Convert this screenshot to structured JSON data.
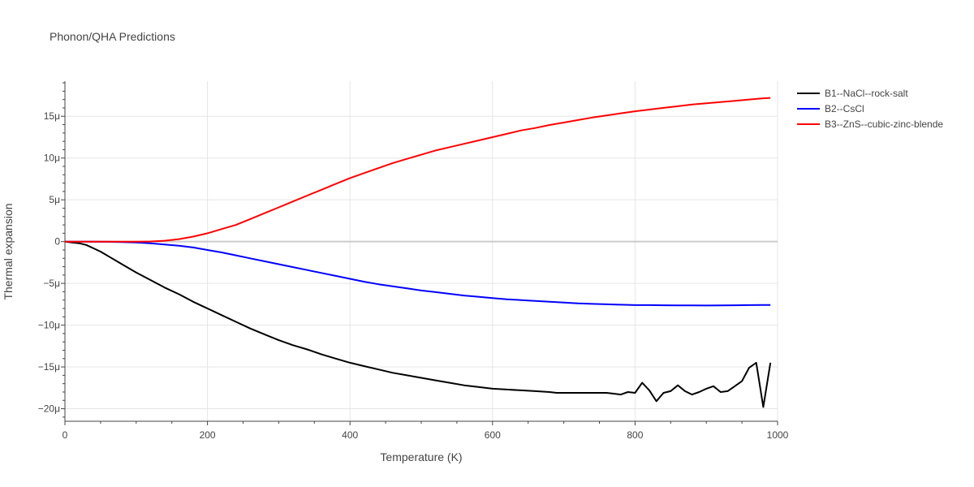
{
  "title": "Phonon/QHA Predictions",
  "chart_data": {
    "type": "line",
    "title": "Phonon/QHA Predictions",
    "xlabel": "Temperature (K)",
    "ylabel": "Thermal expansion",
    "xlim": [
      0,
      1000
    ],
    "ylim": [
      -21.5,
      19.2
    ],
    "x_ticks": [
      {
        "value": 0,
        "label": "0"
      },
      {
        "value": 200,
        "label": "200"
      },
      {
        "value": 400,
        "label": "400"
      },
      {
        "value": 600,
        "label": "600"
      },
      {
        "value": 800,
        "label": "800"
      },
      {
        "value": 1000,
        "label": "1000"
      }
    ],
    "y_ticks": [
      {
        "value": 15,
        "label": "15μ"
      },
      {
        "value": 10,
        "label": "10μ"
      },
      {
        "value": 5,
        "label": "5μ"
      },
      {
        "value": 0,
        "label": "0"
      },
      {
        "value": -5,
        "label": "−5μ"
      },
      {
        "value": -10,
        "label": "−10μ"
      },
      {
        "value": -15,
        "label": "−15μ"
      },
      {
        "value": -20,
        "label": "−20μ"
      }
    ],
    "grid": true,
    "legend_position": "top-right",
    "series": [
      {
        "name": "B1--NaCl--rock-salt",
        "color": "#000000",
        "x": [
          0,
          10,
          20,
          30,
          40,
          50,
          60,
          80,
          100,
          120,
          140,
          160,
          180,
          200,
          220,
          240,
          260,
          280,
          300,
          320,
          340,
          360,
          380,
          400,
          420,
          440,
          460,
          480,
          500,
          520,
          540,
          560,
          580,
          600,
          620,
          640,
          660,
          680,
          690,
          700,
          720,
          740,
          760,
          770,
          780,
          790,
          800,
          810,
          820,
          830,
          840,
          850,
          860,
          870,
          880,
          890,
          900,
          910,
          920,
          930,
          940,
          950,
          960,
          970,
          980,
          990
        ],
        "y": [
          0,
          -0.1,
          -0.2,
          -0.4,
          -0.8,
          -1.2,
          -1.7,
          -2.7,
          -3.7,
          -4.6,
          -5.5,
          -6.3,
          -7.2,
          -8.0,
          -8.8,
          -9.6,
          -10.4,
          -11.1,
          -11.8,
          -12.4,
          -12.9,
          -13.5,
          -14.0,
          -14.5,
          -14.9,
          -15.3,
          -15.7,
          -16.0,
          -16.3,
          -16.6,
          -16.9,
          -17.2,
          -17.4,
          -17.6,
          -17.7,
          -17.8,
          -17.9,
          -18.0,
          -18.1,
          -18.1,
          -18.1,
          -18.1,
          -18.1,
          -18.2,
          -18.3,
          -18.0,
          -18.1,
          -16.9,
          -17.8,
          -19.1,
          -18.1,
          -17.9,
          -17.2,
          -17.9,
          -18.3,
          -18.0,
          -17.6,
          -17.3,
          -18.0,
          -17.9,
          -17.3,
          -16.7,
          -15.1,
          -14.5,
          -19.8,
          -14.5
        ]
      },
      {
        "name": "B2--CsCl",
        "color": "#0000ff",
        "x": [
          0,
          20,
          40,
          60,
          80,
          100,
          120,
          140,
          160,
          180,
          200,
          220,
          240,
          260,
          280,
          300,
          320,
          340,
          360,
          380,
          400,
          420,
          440,
          460,
          480,
          500,
          520,
          540,
          560,
          580,
          600,
          620,
          640,
          660,
          680,
          700,
          720,
          740,
          760,
          780,
          800,
          820,
          840,
          860,
          880,
          900,
          920,
          940,
          960,
          980,
          990
        ],
        "y": [
          0,
          0,
          0,
          -0.02,
          -0.05,
          -0.1,
          -0.2,
          -0.35,
          -0.5,
          -0.7,
          -1.0,
          -1.3,
          -1.65,
          -2.0,
          -2.35,
          -2.7,
          -3.05,
          -3.4,
          -3.75,
          -4.1,
          -4.45,
          -4.8,
          -5.1,
          -5.35,
          -5.6,
          -5.85,
          -6.05,
          -6.25,
          -6.45,
          -6.6,
          -6.75,
          -6.9,
          -7.0,
          -7.1,
          -7.2,
          -7.3,
          -7.4,
          -7.45,
          -7.5,
          -7.55,
          -7.6,
          -7.6,
          -7.62,
          -7.63,
          -7.64,
          -7.65,
          -7.64,
          -7.62,
          -7.6,
          -7.58,
          -7.58
        ]
      },
      {
        "name": "B3--ZnS--cubic-zinc-blende",
        "color": "#ff0000",
        "x": [
          0,
          20,
          40,
          60,
          80,
          100,
          120,
          140,
          160,
          180,
          200,
          220,
          240,
          260,
          280,
          300,
          320,
          340,
          360,
          380,
          400,
          420,
          440,
          460,
          480,
          500,
          520,
          540,
          560,
          580,
          600,
          620,
          640,
          660,
          680,
          700,
          720,
          740,
          760,
          780,
          800,
          820,
          840,
          860,
          880,
          900,
          920,
          940,
          960,
          980,
          990
        ],
        "y": [
          0,
          0,
          0,
          0,
          0,
          0,
          0.02,
          0.1,
          0.3,
          0.6,
          1.0,
          1.5,
          2.0,
          2.7,
          3.4,
          4.1,
          4.8,
          5.5,
          6.2,
          6.9,
          7.6,
          8.2,
          8.8,
          9.4,
          9.9,
          10.4,
          10.9,
          11.3,
          11.7,
          12.1,
          12.5,
          12.9,
          13.3,
          13.6,
          13.95,
          14.25,
          14.55,
          14.85,
          15.1,
          15.35,
          15.6,
          15.8,
          16.0,
          16.2,
          16.4,
          16.55,
          16.7,
          16.85,
          17.0,
          17.15,
          17.2
        ]
      }
    ]
  }
}
